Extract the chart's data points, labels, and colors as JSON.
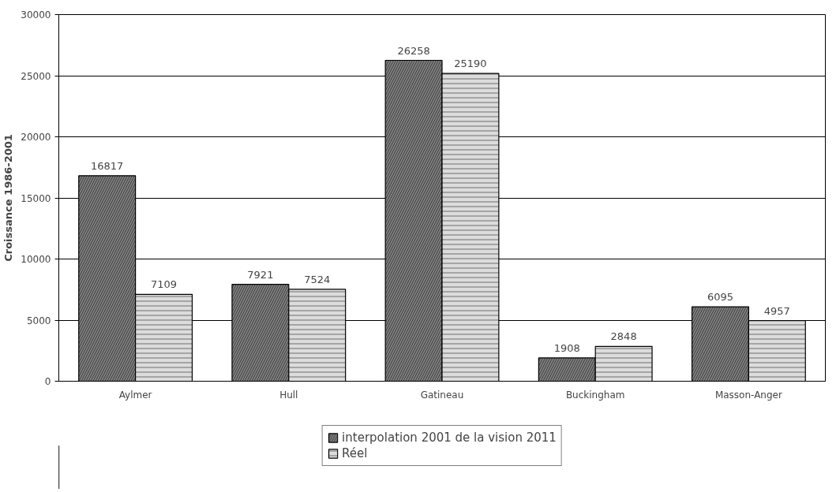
{
  "chart_data": {
    "type": "bar",
    "ylabel": "Croissance 1986-2001",
    "categories": [
      "Aylmer",
      "Hull",
      "Gatineau",
      "Buckingham",
      "Masson-Anger"
    ],
    "series": [
      {
        "name": "interpolation 2001 de la vision 2011",
        "color": "#7f7f7f",
        "values": [
          16817,
          7921,
          26258,
          1908,
          6095
        ]
      },
      {
        "name": "Réel",
        "color": "#dcdcdc",
        "values": [
          7109,
          7524,
          25190,
          2848,
          4957
        ]
      }
    ],
    "ylim": [
      0,
      30000
    ],
    "yticks": [
      0,
      5000,
      10000,
      15000,
      20000,
      25000,
      30000
    ],
    "grid": "y",
    "legend": "bottom",
    "data_labels": true
  }
}
